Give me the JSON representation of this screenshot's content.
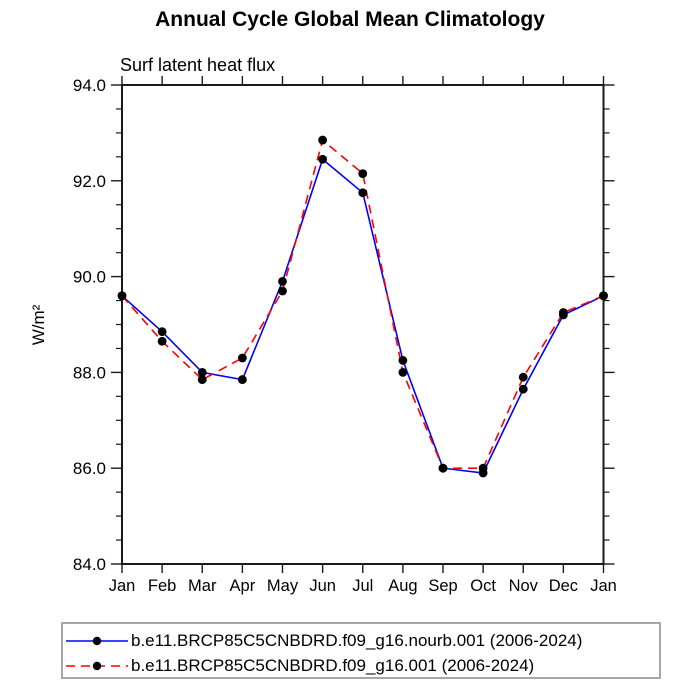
{
  "page": {
    "background": "#ffffff"
  },
  "chart": {
    "title": "Annual Cycle Global Mean Climatology",
    "subtitle": "Surf latent heat flux",
    "ylabel": "W/m²"
  },
  "chart_data": {
    "type": "line",
    "title": "Annual Cycle Global Mean Climatology",
    "subtitle": "Surf latent heat flux",
    "xlabel": "",
    "ylabel": "W/m²",
    "categories": [
      "Jan",
      "Feb",
      "Mar",
      "Apr",
      "May",
      "Jun",
      "Jul",
      "Aug",
      "Sep",
      "Oct",
      "Nov",
      "Dec",
      "Jan"
    ],
    "ylim": [
      84.0,
      94.0
    ],
    "ytick_major": [
      84.0,
      86.0,
      88.0,
      90.0,
      92.0,
      94.0
    ],
    "ytick_minor_step": 0.5,
    "grid": false,
    "legend_position": "bottom",
    "frame_color": "#1a1a1a",
    "series": [
      {
        "name": "b.e11.BRCP85C5CNBDRD.f09_g16.nourb.001 (2006-2024)",
        "color": "#0000ff",
        "style": "solid",
        "marker": "circle",
        "marker_color": "#000000",
        "values": [
          89.6,
          88.85,
          88.0,
          87.85,
          89.9,
          92.45,
          91.75,
          88.25,
          86.0,
          85.9,
          87.65,
          89.2,
          89.6
        ]
      },
      {
        "name": "b.e11.BRCP85C5CNBDRD.f09_g16.001 (2006-2024)",
        "color": "#ff0000",
        "style": "dashed",
        "dash": "9,6",
        "marker": "circle",
        "marker_color": "#000000",
        "values": [
          89.6,
          88.65,
          87.85,
          88.3,
          89.7,
          92.85,
          92.15,
          88.0,
          86.0,
          86.0,
          87.9,
          89.25,
          89.6
        ]
      }
    ]
  }
}
